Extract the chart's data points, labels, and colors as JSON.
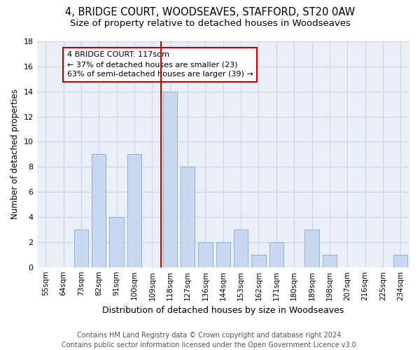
{
  "title1": "4, BRIDGE COURT, WOODSEAVES, STAFFORD, ST20 0AW",
  "title2": "Size of property relative to detached houses in Woodseaves",
  "xlabel": "Distribution of detached houses by size in Woodseaves",
  "ylabel": "Number of detached properties",
  "categories": [
    "55sqm",
    "64sqm",
    "73sqm",
    "82sqm",
    "91sqm",
    "100sqm",
    "109sqm",
    "118sqm",
    "127sqm",
    "136sqm",
    "144sqm",
    "153sqm",
    "162sqm",
    "171sqm",
    "180sqm",
    "189sqm",
    "198sqm",
    "207sqm",
    "216sqm",
    "225sqm",
    "234sqm"
  ],
  "values": [
    0,
    0,
    3,
    9,
    4,
    9,
    0,
    14,
    8,
    2,
    2,
    3,
    1,
    2,
    0,
    3,
    1,
    0,
    0,
    0,
    1
  ],
  "bar_color": "#c8d8f0",
  "bar_edge_color": "#8aa8cc",
  "property_label": "4 BRIDGE COURT: 117sqm",
  "annotation_line1": "← 37% of detached houses are smaller (23)",
  "annotation_line2": "63% of semi-detached houses are larger (39) →",
  "vline_color": "#cc0000",
  "annotation_box_color": "#cc0000",
  "annotation_bg": "white",
  "ylim": [
    0,
    18
  ],
  "yticks": [
    0,
    2,
    4,
    6,
    8,
    10,
    12,
    14,
    16,
    18
  ],
  "grid_color": "#ccd4e8",
  "bg_color": "#eaeff8",
  "footer1": "Contains HM Land Registry data © Crown copyright and database right 2024.",
  "footer2": "Contains public sector information licensed under the Open Government Licence v3.0.",
  "title_fontsize": 10.5,
  "subtitle_fontsize": 9.5,
  "xlabel_fontsize": 9,
  "ylabel_fontsize": 8.5,
  "tick_fontsize": 7.5,
  "footer_fontsize": 7,
  "annot_fontsize": 8
}
